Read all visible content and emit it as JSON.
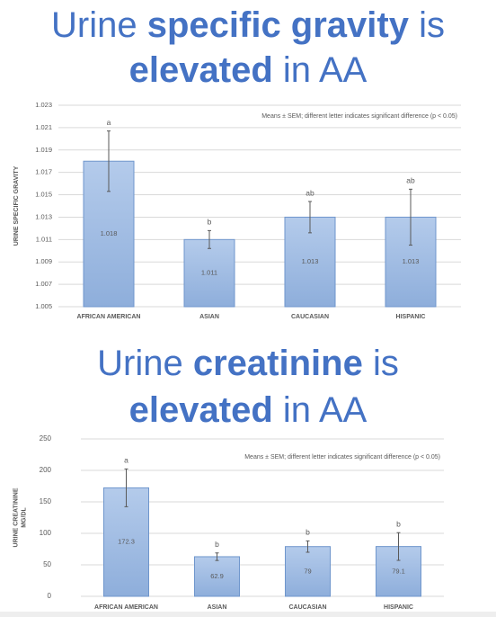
{
  "chart_data": [
    {
      "type": "bar",
      "title_lines": [
        [
          {
            "text": "Urine",
            "bold": false
          },
          {
            "text": "specific gravity",
            "bold": true
          },
          {
            "text": "is",
            "bold": false
          }
        ],
        [
          {
            "text": "elevated",
            "bold": true
          },
          {
            "text": "in AA",
            "bold": false
          }
        ]
      ],
      "y_label_lines": [
        "URINE SPECIFIC GRAVITY"
      ],
      "note": "Means ± SEM; different letter indicates significant difference (p < 0.05)",
      "categories": [
        "AFRICAN AMERICAN",
        "ASIAN",
        "CAUCASIAN",
        "HISPANIC"
      ],
      "values": [
        1.018,
        1.011,
        1.013,
        1.013
      ],
      "errors": [
        0.0027,
        0.0008,
        0.0014,
        0.0025
      ],
      "letters": [
        "a",
        "b",
        "ab",
        "ab"
      ],
      "color": "#9dbbe4",
      "ylim": [
        1.005,
        1.023
      ],
      "yticks": [
        1.005,
        1.007,
        1.009,
        1.011,
        1.013,
        1.015,
        1.017,
        1.019,
        1.021,
        1.023
      ],
      "grid": true
    },
    {
      "type": "bar",
      "title_lines": [
        [
          {
            "text": "Urine",
            "bold": false
          },
          {
            "text": "creatinine",
            "bold": true
          },
          {
            "text": "is",
            "bold": false
          }
        ],
        [
          {
            "text": "elevated",
            "bold": true
          },
          {
            "text": "in AA",
            "bold": false
          }
        ]
      ],
      "y_label_lines": [
        "URINE CREATININE",
        "MG/DL"
      ],
      "note": "Means ± SEM; different letter indicates significant difference (p < 0.05)",
      "categories": [
        "AFRICAN AMERICAN",
        "ASIAN",
        "CAUCASIAN",
        "HISPANIC"
      ],
      "values": [
        172.3,
        62.9,
        79,
        79.1
      ],
      "errors": [
        30,
        6,
        9,
        22
      ],
      "letters": [
        "a",
        "b",
        "b",
        "b"
      ],
      "color": "#9dbbe4",
      "ylim": [
        0,
        250
      ],
      "yticks": [
        0,
        50,
        100,
        150,
        200,
        250
      ],
      "grid": true
    }
  ]
}
